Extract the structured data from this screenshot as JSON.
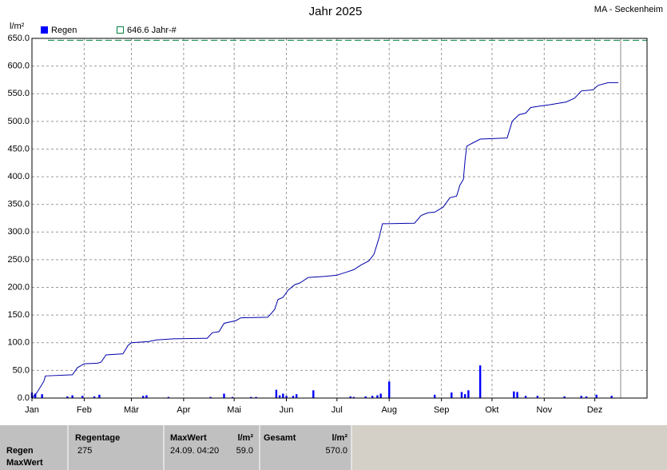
{
  "chart_data": {
    "type": "bar-line",
    "title": "Jahr 2025",
    "station": "MA - Seckenheim",
    "y_label": "l/m²",
    "xlim": [
      1,
      366
    ],
    "xticks": [
      {
        "value": 1,
        "label": "Jan"
      },
      {
        "value": 32,
        "label": "Feb"
      },
      {
        "value": 60,
        "label": "Mär"
      },
      {
        "value": 91,
        "label": "Apr"
      },
      {
        "value": 121,
        "label": "Mai"
      },
      {
        "value": 152,
        "label": "Jun"
      },
      {
        "value": 182,
        "label": "Jul"
      },
      {
        "value": 213,
        "label": "Aug"
      },
      {
        "value": 244,
        "label": "Sep"
      },
      {
        "value": 274,
        "label": "Okt"
      },
      {
        "value": 305,
        "label": "Nov"
      },
      {
        "value": 335,
        "label": "Dez"
      }
    ],
    "ylim": [
      0,
      650
    ],
    "yticks": [
      {
        "value": 0,
        "label": "0.0"
      },
      {
        "value": 50,
        "label": "50.0"
      },
      {
        "value": 100,
        "label": "100.0"
      },
      {
        "value": 150,
        "label": "150.0"
      },
      {
        "value": 200,
        "label": "200.0"
      },
      {
        "value": 250,
        "label": "250.0"
      },
      {
        "value": 300,
        "label": "300.0"
      },
      {
        "value": 350,
        "label": "350.0"
      },
      {
        "value": 400,
        "label": "400.0"
      },
      {
        "value": 450,
        "label": "450.0"
      },
      {
        "value": 500,
        "label": "500.0"
      },
      {
        "value": 550,
        "label": "550.0"
      },
      {
        "value": 600,
        "label": "600.0"
      },
      {
        "value": 650,
        "label": "650.0"
      }
    ],
    "grid": true,
    "series": [
      {
        "name": "Regen",
        "color": "#0000ff",
        "x": [
          1,
          3,
          7,
          22,
          25,
          31,
          38,
          41,
          67,
          69,
          82,
          107,
          115,
          120,
          131,
          134,
          146,
          148,
          150,
          152,
          156,
          158,
          168,
          190,
          192,
          199,
          203,
          206,
          208,
          213,
          240,
          250,
          256,
          258,
          260,
          267,
          287,
          289,
          294,
          301,
          317,
          327,
          330,
          336,
          345
        ],
        "values": [
          10,
          8,
          7,
          3,
          5,
          4,
          3,
          6,
          4,
          5,
          2,
          2,
          8,
          2,
          2,
          2,
          15,
          5,
          8,
          4,
          4,
          7,
          14,
          3,
          2,
          3,
          4,
          5,
          8,
          30,
          6,
          10,
          11,
          7,
          14,
          59,
          12,
          11,
          4,
          4,
          3,
          4,
          3,
          6,
          4
        ]
      }
    ],
    "cumulative": {
      "color": "#0000aa",
      "x": [
        1,
        4,
        6,
        8,
        9,
        25,
        28,
        32,
        40,
        42,
        45,
        55,
        58,
        60,
        70,
        75,
        85,
        105,
        108,
        112,
        115,
        122,
        125,
        141,
        145,
        147,
        150,
        153,
        157,
        160,
        165,
        175,
        182,
        188,
        192,
        196,
        201,
        204,
        207,
        209,
        212,
        228,
        232,
        236,
        240,
        245,
        249,
        253,
        255,
        257,
        258,
        259,
        262,
        267,
        283,
        286,
        290,
        294,
        297,
        303,
        308,
        318,
        323,
        327,
        334,
        337,
        343,
        349
      ],
      "values": [
        0,
        10,
        20,
        30,
        40,
        42,
        55,
        62,
        63,
        65,
        78,
        80,
        95,
        100,
        102,
        105,
        107,
        108,
        118,
        120,
        135,
        140,
        145,
        146,
        160,
        178,
        182,
        195,
        205,
        208,
        218,
        220,
        222,
        228,
        232,
        240,
        248,
        260,
        290,
        315,
        315,
        316,
        330,
        335,
        336,
        345,
        362,
        365,
        385,
        395,
        430,
        455,
        460,
        468,
        470,
        500,
        512,
        515,
        525,
        528,
        530,
        535,
        542,
        555,
        557,
        565,
        570,
        570
      ]
    },
    "reference": {
      "value": 646.6,
      "label": "646.6 Jahr-#",
      "color": "#008040"
    }
  },
  "table": {
    "header": [
      "Regentage",
      "MaxWert",
      "l/m²",
      "Gesamt",
      "l/m²"
    ],
    "row_labels": [
      "Regen",
      "MaxWert"
    ],
    "rows": [
      [
        "275",
        "24.09. 04:20",
        "59.0",
        "570.0"
      ]
    ]
  }
}
